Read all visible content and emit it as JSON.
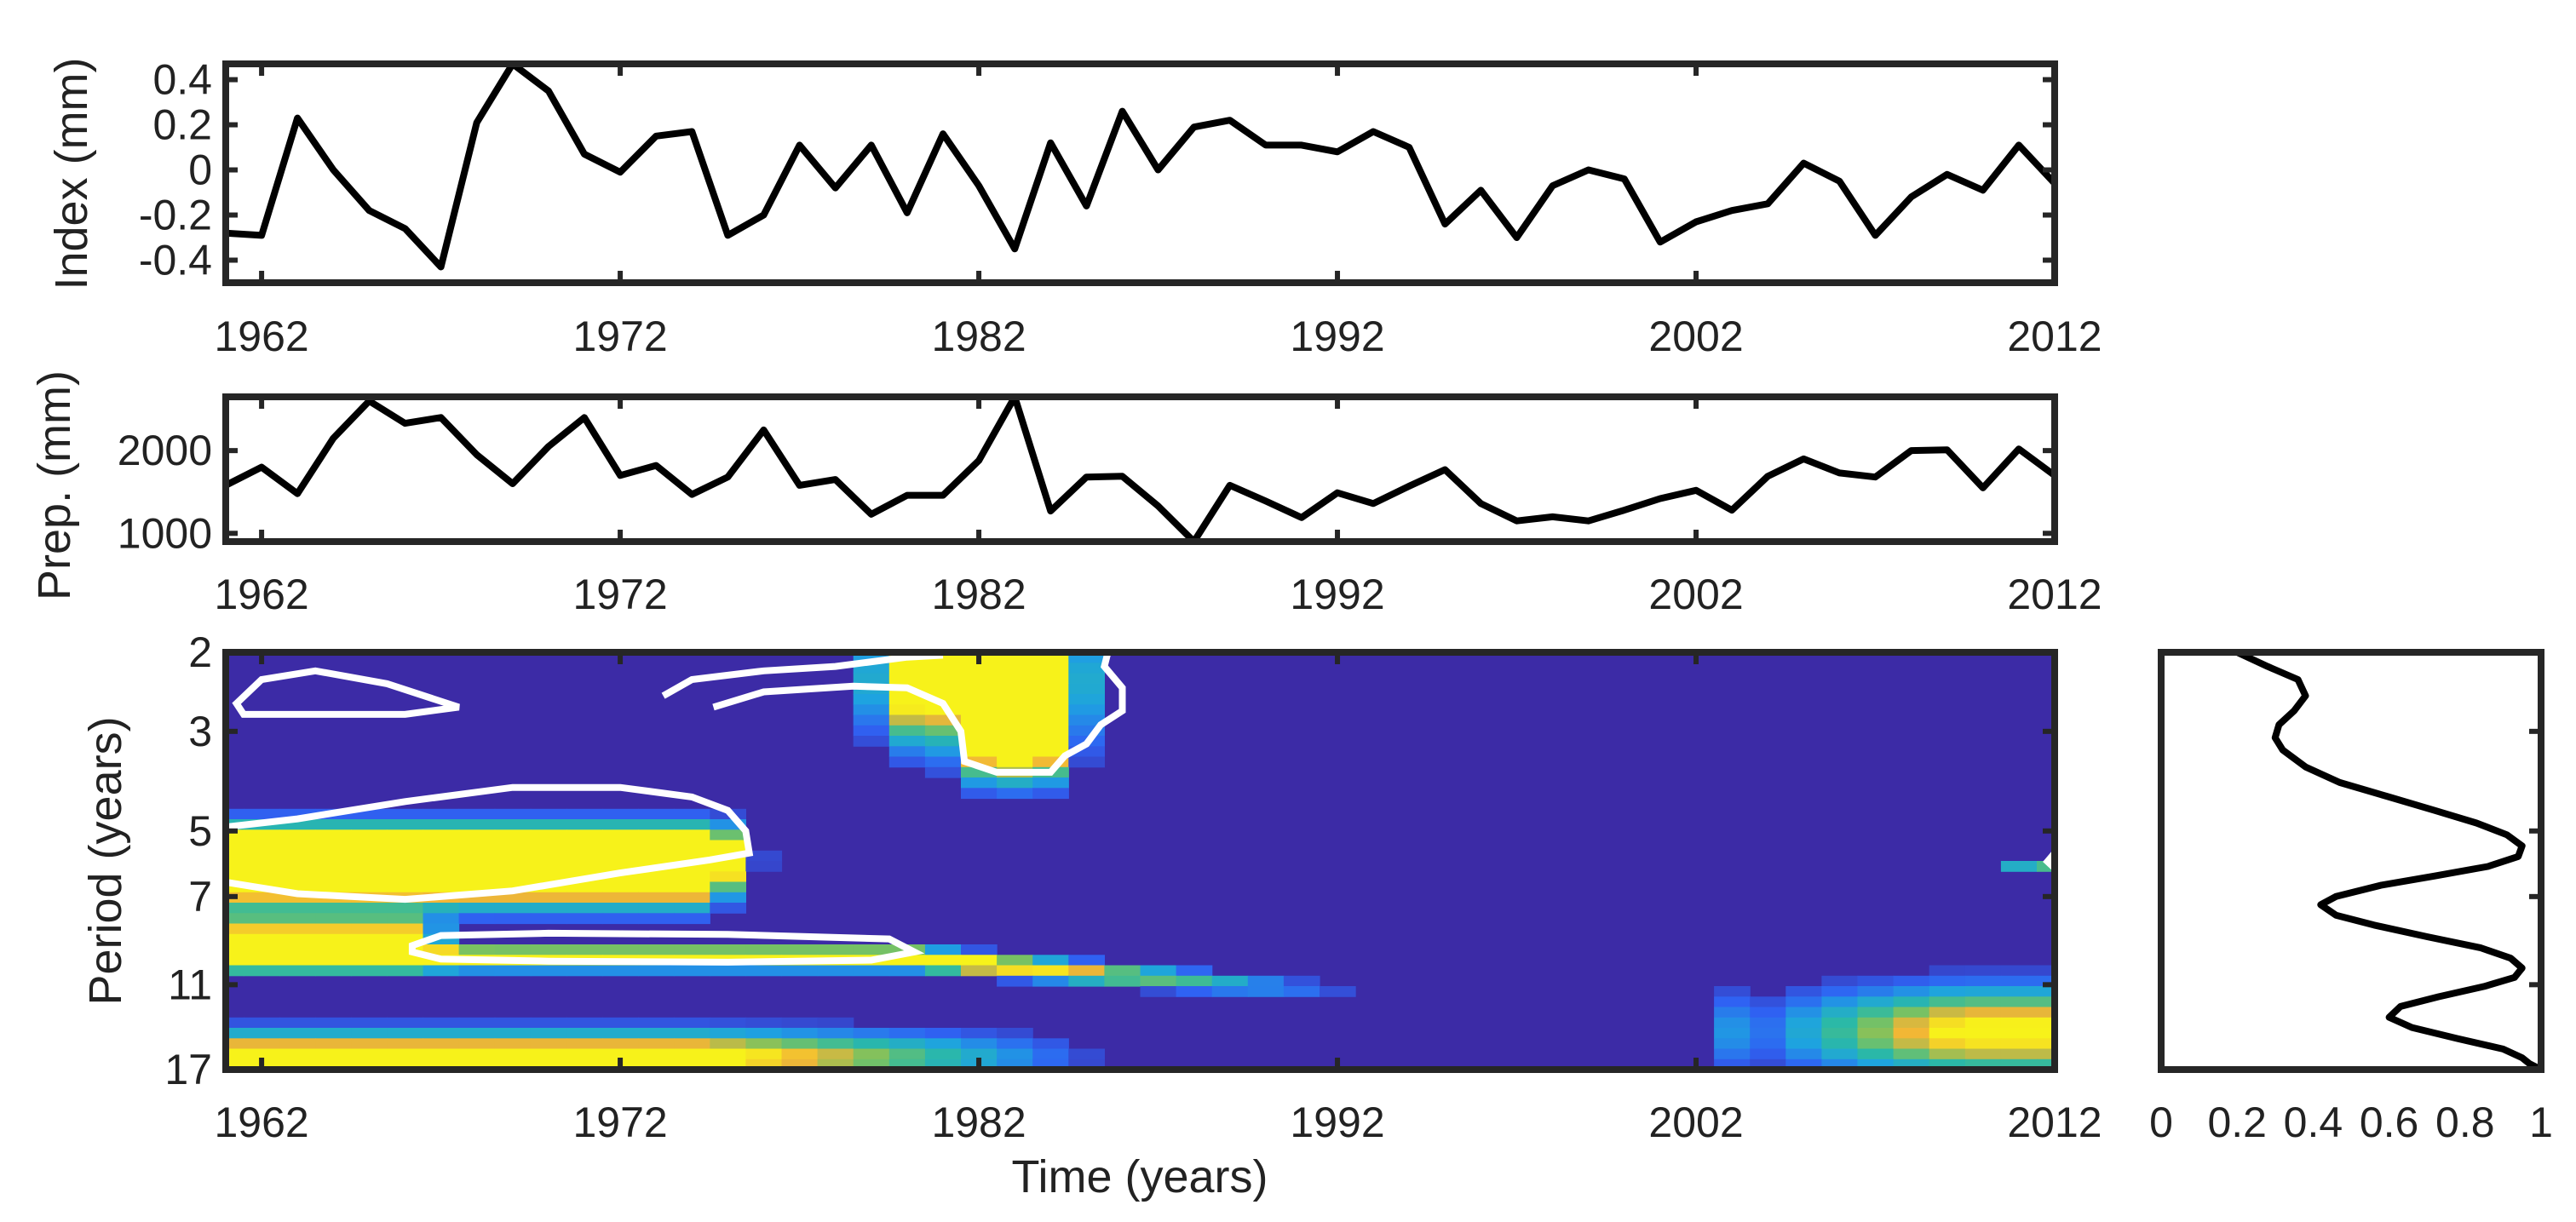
{
  "colors": {
    "line": "#000000",
    "frame": "#262626",
    "background_low": "#3c2ba6",
    "contour": "#ffffff",
    "colormap": [
      "#3c2ba6",
      "#2f62f3",
      "#1ea3e0",
      "#2bb9a6",
      "#7ec25e",
      "#f2b536",
      "#f7f21a"
    ]
  },
  "chart_data": [
    {
      "type": "line",
      "id": "index",
      "ylabel": "Index (mm)",
      "xlabel": "",
      "xlim": [
        1961,
        2012
      ],
      "ylim": [
        -0.5,
        0.47
      ],
      "xticks": [
        1962,
        1972,
        1982,
        1992,
        2002,
        2012
      ],
      "yticks": [
        -0.4,
        -0.2,
        0,
        0.2,
        0.4
      ],
      "ytick_labels": [
        "-0.4",
        "-0.2",
        "0",
        "0.2",
        "0.4"
      ],
      "x": [
        1961,
        1962,
        1963,
        1964,
        1965,
        1966,
        1967,
        1968,
        1969,
        1970,
        1971,
        1972,
        1973,
        1974,
        1975,
        1976,
        1977,
        1978,
        1979,
        1980,
        1981,
        1982,
        1983,
        1984,
        1985,
        1986,
        1987,
        1988,
        1989,
        1990,
        1991,
        1992,
        1993,
        1994,
        1995,
        1996,
        1997,
        1998,
        1999,
        2000,
        2001,
        2002,
        2003,
        2004,
        2005,
        2006,
        2007,
        2008,
        2009,
        2010,
        2011,
        2012
      ],
      "values": [
        -0.28,
        -0.29,
        0.23,
        0.0,
        -0.18,
        -0.26,
        -0.43,
        0.21,
        0.47,
        0.35,
        0.07,
        -0.01,
        0.15,
        0.17,
        -0.29,
        -0.2,
        0.11,
        -0.08,
        0.11,
        -0.19,
        0.16,
        -0.07,
        -0.35,
        0.12,
        -0.16,
        0.26,
        0.0,
        0.19,
        0.22,
        0.11,
        0.11,
        0.08,
        0.17,
        0.1,
        -0.24,
        -0.09,
        -0.3,
        -0.07,
        0.0,
        -0.04,
        -0.32,
        -0.23,
        -0.18,
        -0.15,
        0.03,
        -0.05,
        -0.29,
        -0.12,
        -0.02,
        -0.09,
        0.11,
        -0.06
      ]
    },
    {
      "type": "line",
      "id": "precip",
      "ylabel": "Prep. (mm)",
      "xlabel": "",
      "xlim": [
        1961,
        2012
      ],
      "ylim": [
        900,
        2650
      ],
      "xticks": [
        1962,
        1972,
        1982,
        1992,
        2002,
        2012
      ],
      "yticks": [
        1000,
        2000
      ],
      "ytick_labels": [
        "1000",
        "2000"
      ],
      "x": [
        1961,
        1962,
        1963,
        1964,
        1965,
        1966,
        1967,
        1968,
        1969,
        1970,
        1971,
        1972,
        1973,
        1974,
        1975,
        1976,
        1977,
        1978,
        1979,
        1980,
        1981,
        1982,
        1983,
        1984,
        1985,
        1986,
        1987,
        1988,
        1989,
        1990,
        1991,
        1992,
        1993,
        1994,
        1995,
        1996,
        1997,
        1998,
        1999,
        2000,
        2001,
        2002,
        2003,
        2004,
        2005,
        2006,
        2007,
        2008,
        2009,
        2010,
        2011,
        2012
      ],
      "values": [
        1580,
        1800,
        1480,
        2150,
        2600,
        2330,
        2400,
        1950,
        1600,
        2050,
        2400,
        1700,
        1820,
        1470,
        1680,
        2250,
        1580,
        1650,
        1230,
        1460,
        1460,
        1880,
        2650,
        1270,
        1680,
        1690,
        1330,
        900,
        1580,
        1390,
        1190,
        1490,
        1360,
        1570,
        1770,
        1360,
        1150,
        1200,
        1150,
        1280,
        1420,
        1520,
        1280,
        1690,
        1900,
        1730,
        1680,
        2000,
        2010,
        1550,
        2020,
        1700
      ]
    },
    {
      "type": "heatmap",
      "id": "wavelet",
      "ylabel": "Period (years)",
      "xlabel": "Time (years)",
      "xlim": [
        1961,
        2012
      ],
      "ylim": [
        2,
        17
      ],
      "log_y": true,
      "xticks": [
        1962,
        1972,
        1982,
        1992,
        2002,
        2012
      ],
      "yticks": [
        2,
        3,
        5,
        7,
        11,
        17
      ],
      "ytick_labels": [
        "2",
        "3",
        "5",
        "7",
        "11",
        "17"
      ],
      "features": [
        {
          "x_range": [
            1961,
            1974.5
          ],
          "period": 5.7,
          "spread": 0.14,
          "peak": 1.0
        },
        {
          "x_range": [
            1961,
            1974
          ],
          "period": 6.2,
          "spread": 0.16,
          "peak": 0.9
        },
        {
          "x_range": [
            1961,
            1980
          ],
          "period": 9.6,
          "spread": 0.05,
          "peak": 1.0,
          "tail_to": 1993,
          "drift": 0.2
        },
        {
          "x_range": [
            1961,
            1966
          ],
          "period": 8.8,
          "spread": 0.12,
          "peak": 0.8
        },
        {
          "x_range": [
            1961,
            1974
          ],
          "period": 16.0,
          "spread": 0.12,
          "peak": 0.85,
          "tail_to": 1986
        },
        {
          "x_range": [
            1980,
            1984
          ],
          "period": 2.3,
          "spread": 0.28,
          "peak": 0.95
        },
        {
          "x_range": [
            1982.5,
            1983.5
          ],
          "period": 3.2,
          "spread": 0.18,
          "peak": 0.9
        },
        {
          "x_range": [
            2004,
            2012
          ],
          "period": 14.0,
          "spread": 0.2,
          "peak": 0.75,
          "rising": true
        },
        {
          "x_range": [
            2011.5,
            2012
          ],
          "period": 6.0,
          "spread": 0.03,
          "peak": 0.4
        }
      ],
      "significance_contours": [
        {
          "points": [
            [
              1961.3,
              2.6
            ],
            [
              1962,
              2.3
            ],
            [
              1963.5,
              2.2
            ],
            [
              1965.5,
              2.35
            ],
            [
              1967.5,
              2.65
            ],
            [
              1966,
              2.75
            ],
            [
              1963,
              2.75
            ],
            [
              1961.5,
              2.75
            ],
            [
              1961.3,
              2.6
            ]
          ]
        },
        {
          "points": [
            [
              1961,
              4.9
            ],
            [
              1963,
              4.7
            ],
            [
              1966,
              4.3
            ],
            [
              1969,
              4.0
            ],
            [
              1972,
              4.0
            ],
            [
              1974,
              4.2
            ],
            [
              1975,
              4.5
            ],
            [
              1975.5,
              5.0
            ],
            [
              1975.6,
              5.6
            ],
            [
              1974.5,
              5.8
            ],
            [
              1972,
              6.2
            ],
            [
              1969,
              6.8
            ],
            [
              1966,
              7.1
            ],
            [
              1963,
              6.9
            ],
            [
              1961,
              6.5
            ]
          ]
        },
        {
          "points": [
            [
              1966.2,
              9.0
            ],
            [
              1967,
              8.55
            ],
            [
              1970,
              8.45
            ],
            [
              1975,
              8.5
            ],
            [
              1979.5,
              8.7
            ],
            [
              1980.2,
              9.3
            ],
            [
              1979,
              9.7
            ],
            [
              1975,
              9.8
            ],
            [
              1970,
              9.75
            ],
            [
              1967,
              9.65
            ],
            [
              1966.2,
              9.3
            ],
            [
              1966.2,
              9.0
            ]
          ]
        },
        {
          "points": [
            [
              1973.2,
              2.5
            ],
            [
              1974,
              2.3
            ],
            [
              1976,
              2.2
            ],
            [
              1978,
              2.15
            ],
            [
              1980,
              2.05
            ],
            [
              1981,
              2.03
            ]
          ],
          "open": true
        },
        {
          "points": [
            [
              1974.6,
              2.65
            ],
            [
              1976,
              2.45
            ],
            [
              1978.5,
              2.38
            ],
            [
              1980,
              2.4
            ],
            [
              1981,
              2.6
            ],
            [
              1981.5,
              3.0
            ],
            [
              1981.6,
              3.5
            ],
            [
              1982.5,
              3.7
            ],
            [
              1984,
              3.7
            ],
            [
              1984.4,
              3.4
            ],
            [
              1985,
              3.2
            ],
            [
              1985.4,
              2.9
            ],
            [
              1986,
              2.7
            ],
            [
              1986,
              2.4
            ],
            [
              1985.5,
              2.15
            ],
            [
              1985.6,
              2.0
            ]
          ],
          "open": true
        },
        {
          "points": [
            [
              2011.8,
              5.85
            ],
            [
              2012,
              5.6
            ],
            [
              2012,
              6.05
            ],
            [
              2011.8,
              5.85
            ]
          ]
        }
      ]
    },
    {
      "type": "line",
      "id": "global-power",
      "ylabel": "",
      "xlabel": "",
      "xlim": [
        0,
        1
      ],
      "ylim": [
        2,
        17
      ],
      "log_y": true,
      "orientation": "vertical",
      "xticks": [
        0,
        0.2,
        0.4,
        0.6,
        0.8,
        1
      ],
      "xtick_labels": [
        "0",
        "0.2",
        "0.4",
        "0.6",
        "0.8",
        "1"
      ],
      "period": [
        2.0,
        2.15,
        2.3,
        2.5,
        2.7,
        2.9,
        3.1,
        3.3,
        3.6,
        3.9,
        4.2,
        4.5,
        4.8,
        5.1,
        5.4,
        5.7,
        6.0,
        6.3,
        6.6,
        7.0,
        7.3,
        7.7,
        8.1,
        8.6,
        9.1,
        9.6,
        10.1,
        10.6,
        11.1,
        11.7,
        12.3,
        13.0,
        13.7,
        14.5,
        15.3,
        16.0,
        16.5,
        17.0
      ],
      "values": [
        0.2,
        0.28,
        0.36,
        0.38,
        0.35,
        0.31,
        0.3,
        0.32,
        0.38,
        0.47,
        0.6,
        0.72,
        0.83,
        0.91,
        0.95,
        0.94,
        0.86,
        0.72,
        0.58,
        0.46,
        0.42,
        0.46,
        0.56,
        0.7,
        0.84,
        0.92,
        0.95,
        0.93,
        0.85,
        0.73,
        0.63,
        0.6,
        0.66,
        0.78,
        0.9,
        0.95,
        0.97,
        1.0
      ]
    }
  ]
}
